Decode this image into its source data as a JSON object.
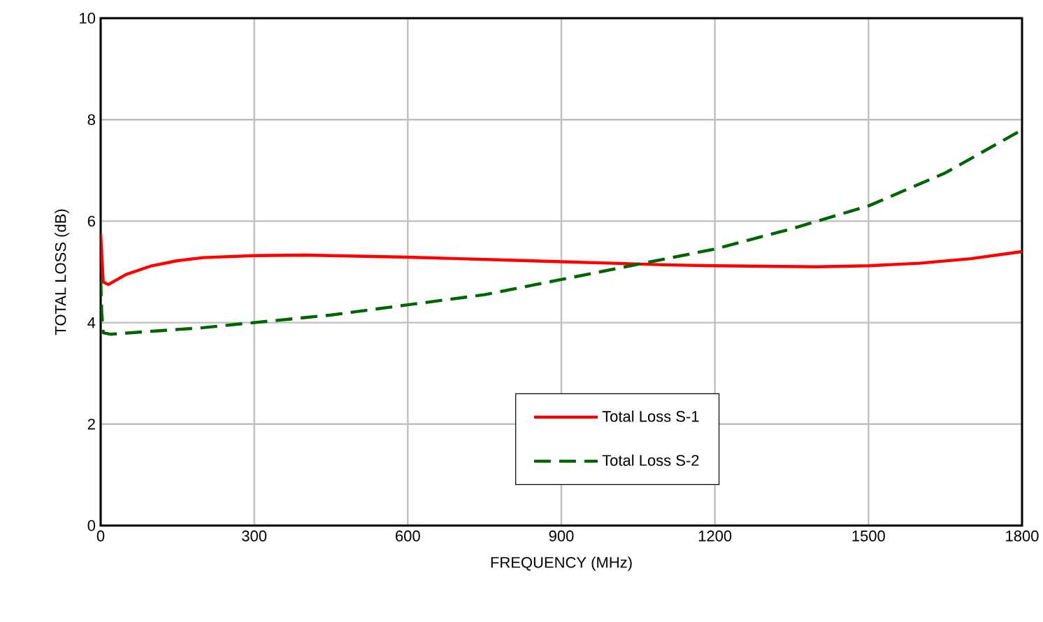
{
  "chart_data": {
    "type": "line",
    "xlabel": "FREQUENCY (MHz)",
    "ylabel": "TOTAL  LOSS (dB)",
    "xlim": [
      0,
      1800
    ],
    "xticks": [
      0,
      300,
      600,
      900,
      1200,
      1500,
      1800
    ],
    "ylim": [
      0,
      10
    ],
    "yticks": [
      0,
      2,
      4,
      6,
      8,
      10
    ],
    "grid": true,
    "legend": "bottom right",
    "series": [
      {
        "name": "Total Loss S-1",
        "color": "#ff0000",
        "line_style": "solid",
        "x": [
          0,
          5,
          15,
          50,
          100,
          150,
          200,
          300,
          400,
          500,
          600,
          700,
          800,
          900,
          1000,
          1100,
          1200,
          1300,
          1400,
          1500,
          1600,
          1700,
          1800
        ],
        "values": [
          5.75,
          4.8,
          4.75,
          4.95,
          5.12,
          5.22,
          5.28,
          5.32,
          5.33,
          5.31,
          5.29,
          5.26,
          5.23,
          5.2,
          5.17,
          5.14,
          5.12,
          5.11,
          5.1,
          5.12,
          5.17,
          5.26,
          5.4
        ]
      },
      {
        "name": "Total Loss S-2",
        "color": "#006400",
        "line_style": "dashed",
        "x": [
          0,
          2,
          5,
          20,
          100,
          200,
          300,
          450,
          600,
          750,
          900,
          1050,
          1200,
          1350,
          1500,
          1650,
          1800
        ],
        "values": [
          4.85,
          4.2,
          3.8,
          3.77,
          3.83,
          3.9,
          4.0,
          4.15,
          4.35,
          4.55,
          4.85,
          5.15,
          5.45,
          5.85,
          6.3,
          6.95,
          7.8
        ]
      }
    ]
  }
}
